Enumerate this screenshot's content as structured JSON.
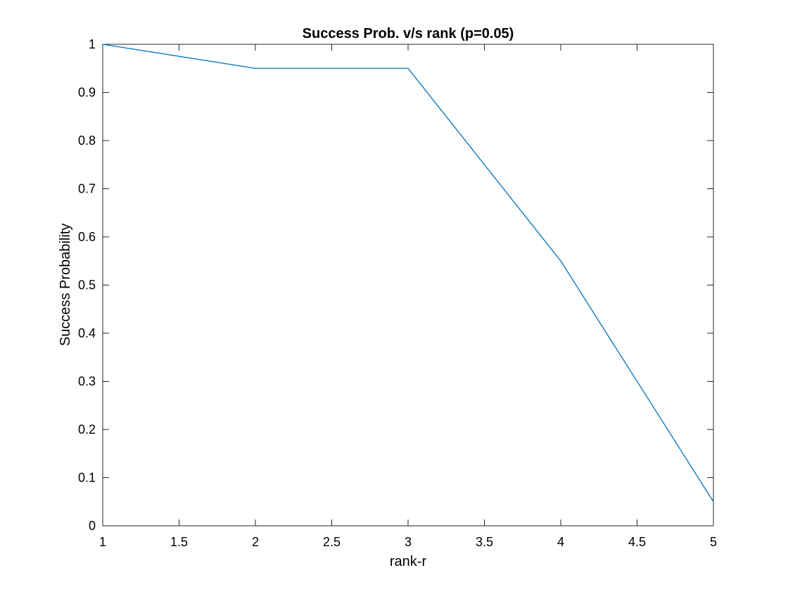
{
  "chart_data": {
    "type": "line",
    "title": "Success Prob. v/s rank (p=0.05)",
    "xlabel": "rank-r",
    "ylabel": "Success Probability",
    "xlim": [
      1,
      5
    ],
    "ylim": [
      0,
      1
    ],
    "xticks": [
      1,
      1.5,
      2,
      2.5,
      3,
      3.5,
      4,
      4.5,
      5
    ],
    "xtick_labels": [
      "1",
      "1.5",
      "2",
      "2.5",
      "3",
      "3.5",
      "4",
      "4.5",
      "5"
    ],
    "yticks": [
      0,
      0.1,
      0.2,
      0.3,
      0.4,
      0.5,
      0.6,
      0.7,
      0.8,
      0.9,
      1
    ],
    "ytick_labels": [
      "0",
      "0.1",
      "0.2",
      "0.3",
      "0.4",
      "0.5",
      "0.6",
      "0.7",
      "0.8",
      "0.9",
      "1"
    ],
    "grid": false,
    "legend": false,
    "series": [
      {
        "color": "#0072BD",
        "x": [
          1,
          2,
          3,
          4,
          5
        ],
        "values": [
          1.0,
          0.95,
          0.95,
          0.55,
          0.05
        ]
      }
    ]
  }
}
